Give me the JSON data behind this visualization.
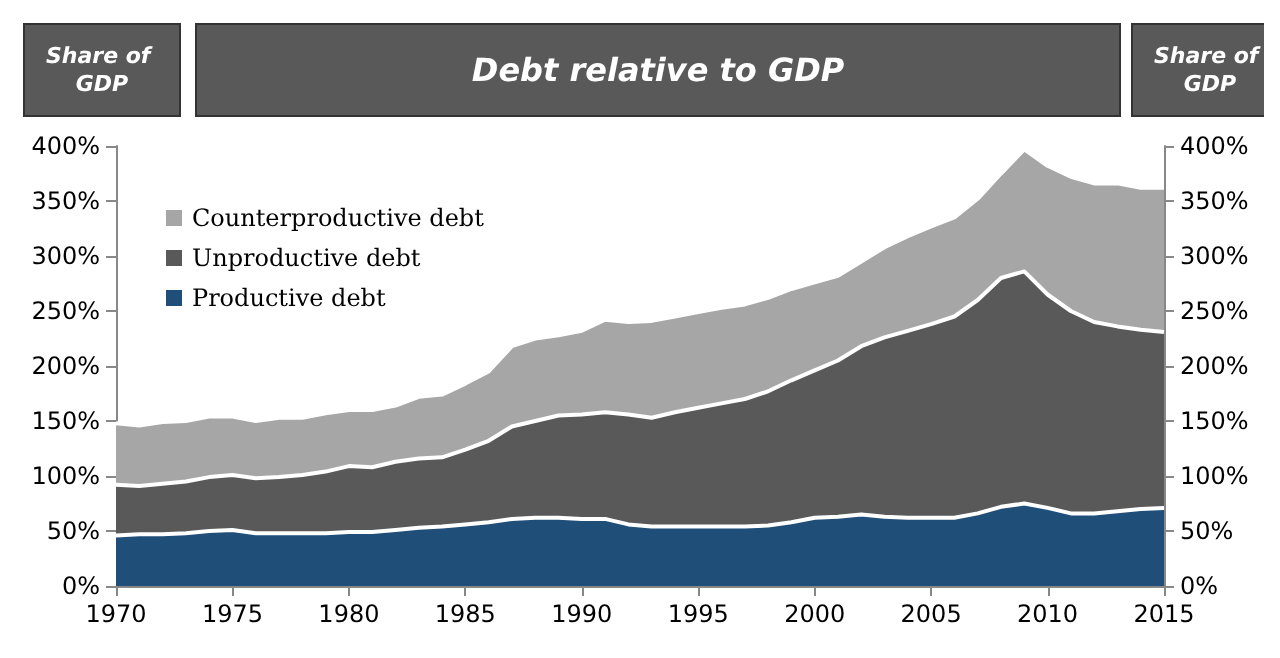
{
  "chart_data": {
    "type": "area",
    "title": "Debt relative to GDP",
    "ylabel": "Share of GDP",
    "y2label": "Share of GDP",
    "stacked": true,
    "legend": "top left",
    "grid": false,
    "marker": "none",
    "x": [
      1970,
      1971,
      1972,
      1973,
      1974,
      1975,
      1976,
      1977,
      1978,
      1979,
      1980,
      1981,
      1982,
      1983,
      1984,
      1985,
      1986,
      1987,
      1988,
      1989,
      1990,
      1991,
      1992,
      1993,
      1994,
      1995,
      1996,
      1997,
      1998,
      1999,
      2000,
      2001,
      2002,
      2003,
      2004,
      2005,
      2006,
      2007,
      2008,
      2009,
      2010,
      2011,
      2012,
      2013,
      2014,
      2015
    ],
    "xlim": [
      1970,
      2015
    ],
    "xticks": [
      1970,
      1975,
      1980,
      1985,
      1990,
      1995,
      2000,
      2005,
      2010,
      2015
    ],
    "ylim": [
      0,
      400
    ],
    "yticks": [
      {
        "value": 0,
        "label": "0%"
      },
      {
        "value": 50,
        "label": "50%"
      },
      {
        "value": 100,
        "label": "100%"
      },
      {
        "value": 150,
        "label": "150%"
      },
      {
        "value": 200,
        "label": "200%"
      },
      {
        "value": 250,
        "label": "250%"
      },
      {
        "value": 300,
        "label": "300%"
      },
      {
        "value": 350,
        "label": "350%"
      },
      {
        "value": 400,
        "label": "400%"
      }
    ],
    "y2lim": [
      0,
      400
    ],
    "y2ticks": [
      {
        "value": 0,
        "label": "0%"
      },
      {
        "value": 50,
        "label": "50%"
      },
      {
        "value": 100,
        "label": "100%"
      },
      {
        "value": 150,
        "label": "150%"
      },
      {
        "value": 200,
        "label": "200%"
      },
      {
        "value": 250,
        "label": "250%"
      },
      {
        "value": 300,
        "label": "300%"
      },
      {
        "value": 350,
        "label": "350%"
      },
      {
        "value": 400,
        "label": "400%"
      }
    ],
    "series": [
      {
        "name": "Productive debt",
        "color": "#1f4e79",
        "values": [
          46,
          47,
          47,
          48,
          50,
          51,
          48,
          48,
          48,
          48,
          49,
          49,
          51,
          53,
          54,
          56,
          58,
          61,
          62,
          62,
          61,
          61,
          56,
          54,
          54,
          54,
          54,
          54,
          55,
          58,
          62,
          63,
          65,
          63,
          62,
          62,
          62,
          66,
          72,
          75,
          71,
          66,
          66,
          68,
          70,
          71
        ]
      },
      {
        "name": "Unproductive debt",
        "color": "#595959",
        "values": [
          46,
          44,
          46,
          47,
          49,
          50,
          50,
          51,
          53,
          56,
          60,
          59,
          62,
          63,
          63,
          68,
          74,
          84,
          88,
          93,
          95,
          97,
          100,
          99,
          104,
          108,
          112,
          116,
          122,
          129,
          134,
          142,
          153,
          163,
          170,
          176,
          183,
          194,
          208,
          211,
          194,
          184,
          174,
          168,
          163,
          160
        ]
      },
      {
        "name": "Counterproductive debt",
        "color": "#a6a6a6",
        "values": [
          56,
          55,
          56,
          55,
          55,
          53,
          52,
          54,
          52,
          53,
          51,
          52,
          51,
          56,
          57,
          60,
          63,
          73,
          75,
          73,
          76,
          84,
          84,
          88,
          87,
          87,
          87,
          86,
          85,
          83,
          80,
          77,
          77,
          82,
          86,
          89,
          90,
          92,
          95,
          111,
          117,
          122,
          126,
          130,
          129,
          131
        ]
      }
    ]
  }
}
